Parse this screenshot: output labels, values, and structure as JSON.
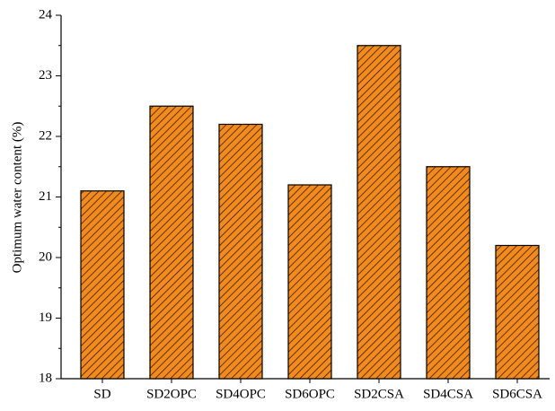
{
  "chart_data": {
    "type": "bar",
    "ylabel": "Optimum water content (%)",
    "categories": [
      "SD",
      "SD2OPC",
      "SD4OPC",
      "SD6OPC",
      "SD2CSA",
      "SD4CSA",
      "SD6CSA"
    ],
    "values": [
      21.1,
      22.5,
      22.2,
      21.2,
      23.5,
      21.5,
      20.2
    ],
    "color": "#f28a1e",
    "hatch_color": "#3a2000",
    "ylim": [
      18,
      24
    ],
    "yticks": [
      18,
      19,
      20,
      21,
      22,
      23,
      24
    ],
    "grid": false
  }
}
